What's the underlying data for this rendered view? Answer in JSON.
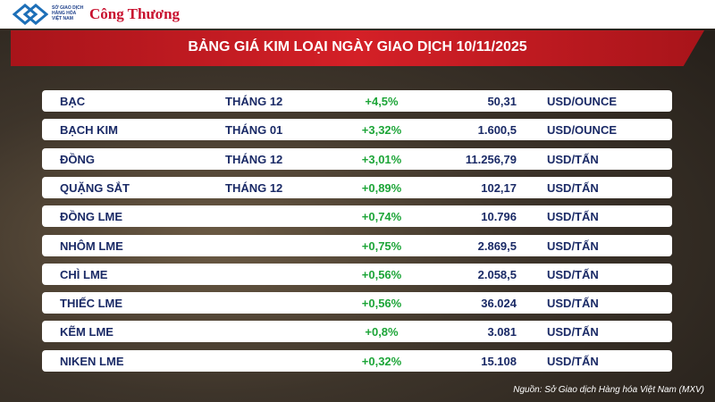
{
  "header": {
    "logo_lines": [
      "SỞ GIAO DỊCH",
      "HÀNG HÓA",
      "VIỆT NAM"
    ],
    "brand": "Công Thương",
    "title": "BẢNG GIÁ KIM LOẠI NGÀY GIAO DỊCH 10/11/2025"
  },
  "table": {
    "rows": [
      {
        "name": "BẠC",
        "month": "THÁNG 12",
        "change": "+4,5%",
        "value": "50,31",
        "unit": "USD/OUNCE"
      },
      {
        "name": "BẠCH KIM",
        "month": "THÁNG 01",
        "change": "+3,32%",
        "value": "1.600,5",
        "unit": "USD/OUNCE"
      },
      {
        "name": "ĐỒNG",
        "month": "THÁNG 12",
        "change": "+3,01%",
        "value": "11.256,79",
        "unit": "USD/TẤN"
      },
      {
        "name": "QUẶNG SẮT",
        "month": "THÁNG 12",
        "change": "+0,89%",
        "value": "102,17",
        "unit": "USD/TẤN"
      },
      {
        "name": "ĐỒNG LME",
        "change": "+0,74%",
        "value": "10.796",
        "unit": "USD/TẤN"
      },
      {
        "name": "NHÔM LME",
        "change": "+0,75%",
        "value": "2.869,5",
        "unit": "USD/TẤN"
      },
      {
        "name": "CHÌ LME",
        "change": "+0,56%",
        "value": "2.058,5",
        "unit": "USD/TẤN"
      },
      {
        "name": "THIẾC LME",
        "change": "+0,56%",
        "value": "36.024",
        "unit": "USD/TẤN"
      },
      {
        "name": "KẼM LME",
        "change": "+0,8%",
        "value": "3.081",
        "unit": "USD/TẤN"
      },
      {
        "name": "NIKEN LME",
        "change": "+0,32%",
        "value": "15.108",
        "unit": "USD/TẤN"
      }
    ]
  },
  "footer": {
    "source": "Nguồn: Sở Giao dịch Hàng hóa Việt Nam (MXV)"
  }
}
